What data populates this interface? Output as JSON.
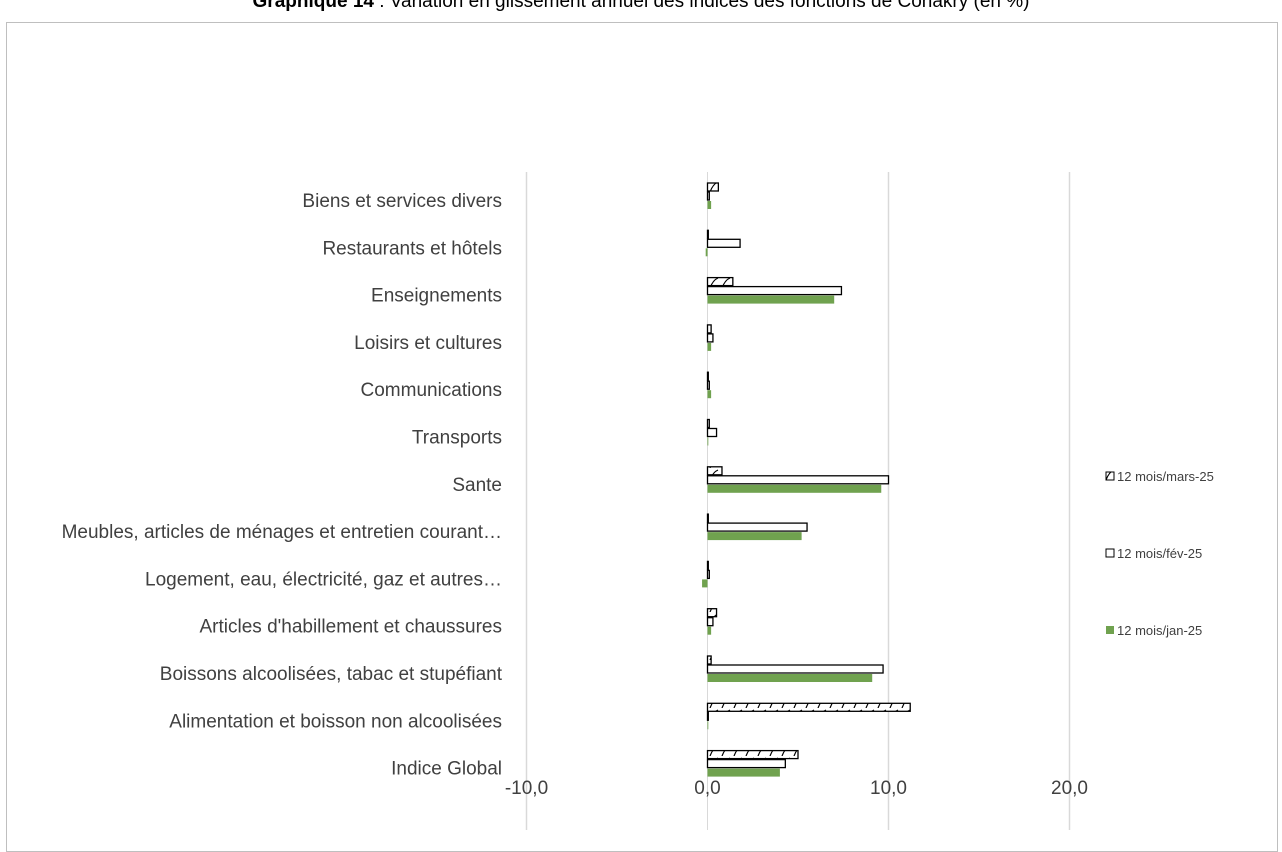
{
  "chart_data": {
    "type": "bar",
    "orientation": "horizontal",
    "title_bold": "Graphique 14",
    "title_rest": " : Variation en glissement annuel des indices des fonctions de Conakry (en %)",
    "categories": [
      "Biens et services divers",
      "Restaurants et hôtels",
      "Enseignements",
      "Loisirs et cultures",
      "Communications",
      "Transports",
      "Sante",
      "Meubles, articles de ménages et entretien courant…",
      "Logement, eau, électricité, gaz et autres…",
      "Articles d'habillement et chaussures",
      "Boissons alcoolisées, tabac et stupéfiant",
      "Alimentation et boisson non alcoolisées",
      "Indice Global"
    ],
    "series": [
      {
        "name": "12 mois/mars-25",
        "pattern": "hatch",
        "values": [
          0.6,
          0.0,
          1.4,
          0.2,
          0.0,
          0.1,
          0.8,
          0.0,
          0.0,
          0.5,
          0.2,
          11.2,
          5.0
        ]
      },
      {
        "name": "12 mois/fév-25",
        "pattern": "outline",
        "values": [
          0.1,
          1.8,
          7.4,
          0.3,
          0.1,
          0.5,
          10.0,
          5.5,
          0.1,
          0.3,
          9.7,
          0.0,
          4.3
        ]
      },
      {
        "name": "12 mois/jan-25",
        "pattern": "solid",
        "color": "#70a24f",
        "values": [
          0.2,
          -0.1,
          7.0,
          0.2,
          0.2,
          0.0,
          9.6,
          5.2,
          -0.3,
          0.2,
          9.1,
          0.0,
          4.0
        ]
      }
    ],
    "x_ticks": [
      "-10,0",
      "0,0",
      "10,0",
      "20,0"
    ],
    "x_tick_values": [
      -10,
      0,
      10,
      20
    ],
    "xlim": [
      -10,
      20
    ],
    "grid": true,
    "legend_position": "right"
  }
}
